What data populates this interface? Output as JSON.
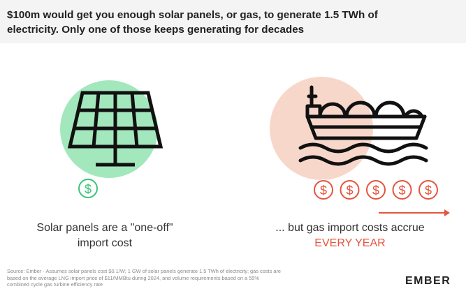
{
  "title": {
    "line1": "$100m would get you enough solar panels, or gas, to generate 1.5 TWh of",
    "line2": "electricity. Only one of those keeps generating for decades"
  },
  "solar": {
    "caption_line1": "Solar panels are a \"one-off\"",
    "caption_line2": "import cost",
    "coin_symbol": "$"
  },
  "gas": {
    "caption_line1": "... but gas import costs accrue",
    "caption_line2": "EVERY YEAR",
    "coin_symbol": "$",
    "coin_count": 5
  },
  "source": {
    "line1": "Source: Ember · Assumes solar panels cost $0.1/W; 1 GW of solar panels generate 1.5 TWh of electricity; gas costs are",
    "line2": "based on the average LNG import price of $11/MMBtu during 2024, and volume requirements based on a 55%",
    "line3": "combined cycle gas turbine efficiency rate"
  },
  "logo": {
    "text": "EMBER"
  },
  "colors": {
    "green_circle": "#a3e7bd",
    "green_coin": "#3cc37a",
    "peach_circle": "#f8d7cb",
    "orange_accent": "#e5553e",
    "icon_stroke": "#111111"
  }
}
